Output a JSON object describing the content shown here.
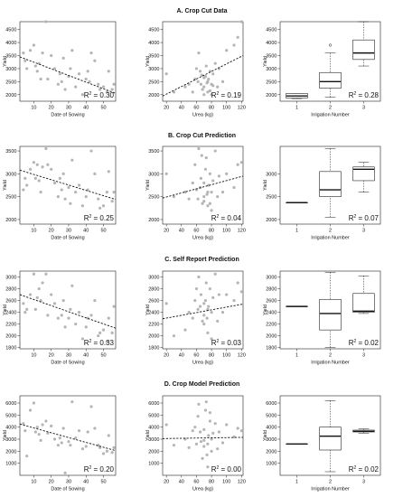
{
  "figure": {
    "background": "#ffffff",
    "point_color": "#b5b5b5",
    "line_color": "#111111"
  },
  "chart_data": [
    {
      "title": "A. Crop Cut Data",
      "scatter_sowing": {
        "type": "scatter",
        "xlabel": "Date of Sowing",
        "ylabel": "Yield",
        "xlim": [
          2,
          57
        ],
        "ylim": [
          1750,
          4800
        ],
        "xticks": [
          10,
          20,
          30,
          40,
          50
        ],
        "yticks": [
          2000,
          2500,
          3000,
          3500,
          4000,
          4500
        ],
        "r2": "0.30",
        "fit": {
          "x": [
            2,
            57
          ],
          "y": [
            3450,
            2050
          ]
        },
        "x": [
          4,
          5,
          8,
          10,
          11,
          12,
          13,
          15,
          17,
          18,
          20,
          22,
          24,
          26,
          27,
          28,
          30,
          31,
          32,
          34,
          36,
          38,
          40,
          41,
          43,
          45,
          47,
          48,
          50,
          52,
          53,
          55,
          56,
          6,
          14,
          25,
          42
        ],
        "y": [
          3600,
          3300,
          3700,
          3900,
          3100,
          2900,
          3200,
          3600,
          4800,
          2600,
          3500,
          3000,
          2400,
          2500,
          3400,
          2200,
          2700,
          3000,
          3700,
          2300,
          2800,
          2000,
          2600,
          2900,
          3600,
          3300,
          2400,
          2200,
          2300,
          2100,
          2900,
          2200,
          2400,
          3000,
          2600,
          2800,
          2500
        ]
      },
      "scatter_urea": {
        "type": "scatter",
        "xlabel": "Urea (kg)",
        "ylabel": "Yield",
        "xlim": [
          15,
          122
        ],
        "ylim": [
          1750,
          4800
        ],
        "xticks": [
          20,
          40,
          60,
          80,
          100,
          120
        ],
        "yticks": [
          2000,
          2500,
          3000,
          3500,
          4000,
          4500
        ],
        "r2": "0.19",
        "fit": {
          "x": [
            15,
            122
          ],
          "y": [
            1950,
            3500
          ]
        },
        "x": [
          20,
          30,
          45,
          50,
          55,
          58,
          60,
          62,
          63,
          65,
          66,
          68,
          70,
          70,
          72,
          73,
          75,
          75,
          76,
          78,
          80,
          80,
          82,
          85,
          88,
          90,
          95,
          100,
          110,
          115,
          120,
          70,
          74,
          78,
          67,
          82
        ],
        "y": [
          2800,
          2100,
          2300,
          2400,
          2100,
          2600,
          3000,
          2500,
          3600,
          2900,
          2400,
          2200,
          2000,
          2300,
          2700,
          3100,
          2500,
          2100,
          2600,
          2900,
          2400,
          2000,
          2800,
          3200,
          2300,
          3000,
          2500,
          3700,
          3900,
          4200,
          4800,
          2650,
          2450,
          2150,
          2750,
          2350
        ]
      },
      "boxplot": {
        "type": "boxplot",
        "xlabel": "Irrigation Number",
        "ylabel": "Yield",
        "ylim": [
          1750,
          4800
        ],
        "yticks": [
          2000,
          2500,
          3000,
          3500,
          4000,
          4500
        ],
        "categories": [
          "1",
          "2",
          "3"
        ],
        "r2": "0.28",
        "boxes": [
          {
            "min": 1850,
            "q1": 1870,
            "median": 1950,
            "q3": 2050,
            "max": 2050,
            "outliers": []
          },
          {
            "min": 1900,
            "q1": 2250,
            "median": 2500,
            "q3": 2850,
            "max": 3600,
            "outliers": [
              3900
            ]
          },
          {
            "min": 3100,
            "q1": 3350,
            "median": 3600,
            "q3": 4100,
            "max": 4800,
            "outliers": []
          }
        ]
      }
    },
    {
      "title": "B. Crop Cut Prediction",
      "scatter_sowing": {
        "type": "scatter",
        "xlabel": "Date of Sowing",
        "ylabel": "Yield",
        "xlim": [
          2,
          57
        ],
        "ylim": [
          1900,
          3600
        ],
        "xticks": [
          10,
          20,
          30,
          40,
          50
        ],
        "yticks": [
          2000,
          2500,
          3000,
          3500
        ],
        "r2": "0.25",
        "fit": {
          "x": [
            2,
            57
          ],
          "y": [
            3080,
            2440
          ]
        },
        "x": [
          4,
          5,
          8,
          10,
          11,
          12,
          13,
          15,
          17,
          18,
          20,
          22,
          24,
          26,
          27,
          28,
          30,
          31,
          32,
          34,
          36,
          38,
          40,
          41,
          43,
          45,
          47,
          48,
          50,
          52,
          53,
          55,
          56,
          6,
          14,
          25
        ],
        "y": [
          2650,
          2900,
          3100,
          3250,
          2900,
          3200,
          2850,
          3150,
          3550,
          3200,
          3100,
          2800,
          2500,
          2650,
          3000,
          2450,
          2700,
          2350,
          3300,
          2600,
          2750,
          2300,
          2500,
          2650,
          3500,
          3000,
          2450,
          2250,
          2300,
          2600,
          3050,
          2400,
          2600,
          2750,
          2600,
          2900
        ]
      },
      "scatter_urea": {
        "type": "scatter",
        "xlabel": "Urea (kg)",
        "ylabel": "Yield",
        "xlim": [
          15,
          122
        ],
        "ylim": [
          1900,
          3600
        ],
        "xticks": [
          20,
          40,
          60,
          80,
          100,
          120
        ],
        "yticks": [
          2000,
          2500,
          3000,
          3500
        ],
        "r2": "0.04",
        "fit": {
          "x": [
            15,
            122
          ],
          "y": [
            2470,
            2950
          ]
        },
        "x": [
          20,
          30,
          45,
          50,
          55,
          58,
          60,
          62,
          63,
          65,
          66,
          68,
          70,
          70,
          72,
          73,
          75,
          75,
          76,
          78,
          80,
          80,
          82,
          85,
          88,
          90,
          95,
          100,
          110,
          115,
          120,
          70,
          74,
          78,
          67
        ],
        "y": [
          3000,
          2500,
          2600,
          2450,
          2800,
          3200,
          2650,
          2450,
          3550,
          2700,
          2900,
          2350,
          2400,
          2500,
          3100,
          3350,
          2600,
          2300,
          2750,
          3000,
          2600,
          2200,
          2850,
          3500,
          2500,
          2950,
          2600,
          3000,
          2700,
          3200,
          3250,
          2800,
          2550,
          2350,
          3400
        ]
      },
      "boxplot": {
        "type": "boxplot",
        "xlabel": "Irrigation Number",
        "ylabel": "Yield",
        "ylim": [
          1900,
          3600
        ],
        "yticks": [
          2000,
          2500,
          3000
        ],
        "categories": [
          "1",
          "2",
          "3"
        ],
        "r2": "0.07",
        "boxes": [
          {
            "min": 2370,
            "q1": 2370,
            "median": 2370,
            "q3": 2370,
            "max": 2370,
            "outliers": []
          },
          {
            "min": 2050,
            "q1": 2500,
            "median": 2650,
            "q3": 3050,
            "max": 3550,
            "outliers": []
          },
          {
            "min": 2600,
            "q1": 2850,
            "median": 3100,
            "q3": 3150,
            "max": 3250,
            "outliers": []
          }
        ]
      }
    },
    {
      "title": "C. Self Report Prediction",
      "scatter_sowing": {
        "type": "scatter",
        "xlabel": "Date of Sowing",
        "ylabel": "Yield",
        "xlim": [
          2,
          57
        ],
        "ylim": [
          1780,
          3100
        ],
        "xticks": [
          10,
          20,
          30,
          40,
          50
        ],
        "yticks": [
          1800,
          2000,
          2200,
          2400,
          2600,
          2800,
          3000
        ],
        "r2": "0.33",
        "fit": {
          "x": [
            2,
            57
          ],
          "y": [
            2700,
            2130
          ]
        },
        "x": [
          4,
          5,
          8,
          10,
          11,
          12,
          13,
          15,
          17,
          18,
          20,
          22,
          24,
          26,
          27,
          28,
          30,
          31,
          32,
          34,
          36,
          38,
          40,
          41,
          43,
          45,
          47,
          48,
          50,
          52,
          53,
          55,
          56,
          6,
          14
        ],
        "y": [
          2550,
          2400,
          2700,
          3050,
          2450,
          2650,
          2800,
          2900,
          3050,
          2350,
          2700,
          2550,
          2300,
          2350,
          2600,
          2150,
          2300,
          2450,
          2850,
          2200,
          2400,
          1950,
          2150,
          2300,
          2350,
          2600,
          2000,
          2050,
          2100,
          1900,
          2300,
          2050,
          2500,
          2450,
          2600
        ]
      },
      "scatter_urea": {
        "type": "scatter",
        "xlabel": "Urea (kg)",
        "ylabel": "Yield",
        "xlim": [
          15,
          122
        ],
        "ylim": [
          1780,
          3100
        ],
        "xticks": [
          20,
          40,
          60,
          80,
          100,
          120
        ],
        "yticks": [
          1800,
          2000,
          2200,
          2400,
          2600,
          2800,
          3000
        ],
        "r2": "0.03",
        "fit": {
          "x": [
            15,
            122
          ],
          "y": [
            2290,
            2540
          ]
        },
        "x": [
          20,
          30,
          45,
          50,
          55,
          58,
          60,
          62,
          63,
          65,
          66,
          68,
          70,
          70,
          72,
          73,
          75,
          75,
          76,
          78,
          80,
          80,
          82,
          85,
          88,
          90,
          95,
          100,
          110,
          115,
          120,
          70,
          74
        ],
        "y": [
          2550,
          2000,
          2100,
          2400,
          2300,
          2600,
          2800,
          2450,
          3000,
          2500,
          2700,
          2250,
          2200,
          2350,
          2600,
          2900,
          2450,
          2050,
          2500,
          2800,
          2400,
          1950,
          2650,
          3050,
          2250,
          2700,
          2400,
          2700,
          2600,
          2900,
          2750,
          2550,
          2300
        ]
      },
      "boxplot": {
        "type": "boxplot",
        "xlabel": "Irrigation Number",
        "ylabel": "Yield",
        "ylim": [
          1780,
          3100
        ],
        "yticks": [
          1800,
          2000,
          2200,
          2400,
          2600,
          2800,
          3000
        ],
        "categories": [
          "1",
          "2",
          "3"
        ],
        "r2": "0.02",
        "boxes": [
          {
            "min": 2500,
            "q1": 2500,
            "median": 2500,
            "q3": 2500,
            "max": 2500,
            "outliers": []
          },
          {
            "min": 1800,
            "q1": 2100,
            "median": 2380,
            "q3": 2620,
            "max": 3080,
            "outliers": []
          },
          {
            "min": 2380,
            "q1": 2400,
            "median": 2420,
            "q3": 2720,
            "max": 3020,
            "outliers": []
          }
        ]
      }
    },
    {
      "title": "D. Crop Model Prediction",
      "scatter_sowing": {
        "type": "scatter",
        "xlabel": "Date of Sowing",
        "ylabel": "Yield",
        "xlim": [
          2,
          57
        ],
        "ylim": [
          0,
          6600
        ],
        "xticks": [
          10,
          20,
          30,
          40,
          50
        ],
        "yticks": [
          1000,
          2000,
          3000,
          4000,
          5000,
          6000
        ],
        "r2": "0.20",
        "fit": {
          "x": [
            2,
            57
          ],
          "y": [
            4250,
            2050
          ]
        },
        "x": [
          4,
          5,
          8,
          10,
          11,
          12,
          13,
          15,
          17,
          18,
          20,
          22,
          24,
          26,
          27,
          28,
          30,
          31,
          32,
          34,
          36,
          38,
          40,
          41,
          43,
          45,
          47,
          48,
          50,
          52,
          53,
          55,
          56,
          6,
          14,
          25
        ],
        "y": [
          4300,
          3700,
          5400,
          6000,
          3600,
          4000,
          3400,
          4200,
          4500,
          3500,
          4100,
          3000,
          2500,
          2700,
          3900,
          200,
          2800,
          2500,
          6100,
          3100,
          3700,
          2200,
          2400,
          3600,
          5700,
          3900,
          2500,
          2300,
          1800,
          2000,
          3300,
          1900,
          2300,
          1600,
          2900,
          3100
        ]
      },
      "scatter_urea": {
        "type": "scatter",
        "xlabel": "Urea (kg)",
        "ylabel": "Yield",
        "xlim": [
          15,
          122
        ],
        "ylim": [
          0,
          6600
        ],
        "xticks": [
          20,
          40,
          60,
          80,
          100,
          120
        ],
        "yticks": [
          1000,
          2000,
          3000,
          4000,
          5000,
          6000
        ],
        "r2": "0.00",
        "fit": {
          "x": [
            15,
            122
          ],
          "y": [
            3050,
            3150
          ]
        },
        "x": [
          20,
          30,
          45,
          50,
          55,
          58,
          60,
          62,
          63,
          65,
          66,
          68,
          70,
          70,
          72,
          73,
          75,
          75,
          76,
          78,
          80,
          80,
          82,
          85,
          88,
          90,
          95,
          100,
          110,
          115,
          120,
          70,
          74,
          78
        ],
        "y": [
          4200,
          2500,
          3000,
          2300,
          3700,
          4000,
          2600,
          4900,
          5900,
          3600,
          2800,
          1400,
          2900,
          3800,
          5400,
          6100,
          2600,
          700,
          3300,
          4500,
          3000,
          2000,
          3500,
          4300,
          2200,
          3600,
          2700,
          4200,
          3200,
          3900,
          3700,
          2400,
          1700,
          5200
        ]
      },
      "boxplot": {
        "type": "boxplot",
        "xlabel": "Irrigation Number",
        "ylabel": "Yield",
        "ylim": [
          0,
          6600
        ],
        "yticks": [
          1000,
          2000,
          3000,
          4000,
          5000,
          6000
        ],
        "categories": [
          "1",
          "2",
          "3"
        ],
        "r2": "0.02",
        "boxes": [
          {
            "min": 2600,
            "q1": 2600,
            "median": 2600,
            "q3": 2600,
            "max": 2600,
            "outliers": []
          },
          {
            "min": 300,
            "q1": 2100,
            "median": 3250,
            "q3": 4000,
            "max": 6200,
            "outliers": []
          },
          {
            "min": 3500,
            "q1": 3600,
            "median": 3650,
            "q3": 3750,
            "max": 3850,
            "outliers": []
          }
        ]
      }
    }
  ]
}
